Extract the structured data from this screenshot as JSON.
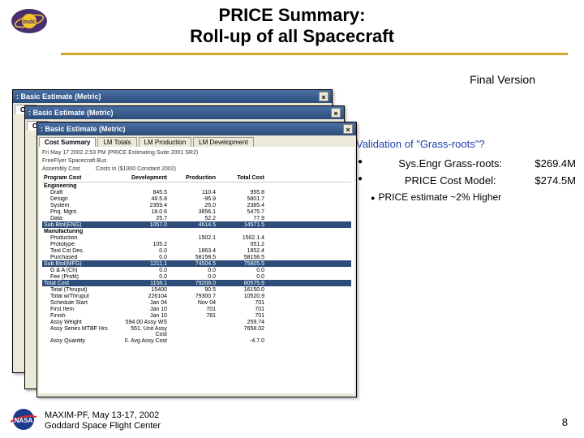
{
  "title_l1": "PRICE Summary:",
  "title_l2": "Roll-up of all Spacecraft",
  "final_version": "Final Version",
  "bullets": {
    "main": "Validation of \"Grass-roots\"?",
    "sub1_label": "Sys.Engr Grass-roots:",
    "sub1_val": "$269.4M",
    "sub2_label": "PRICE Cost Model:",
    "sub2_val": "$274.5M",
    "sub3": "PRICE estimate ~2% Higher"
  },
  "window": {
    "title": ": Basic Estimate (Metric)",
    "tabs": [
      "Cost Summary",
      "LM Totals",
      "LM Production",
      "LM Development"
    ],
    "meta1": "Fri May 17 2002 2:53 PM (PRICE Estimating Suite 2001 SR2)",
    "meta2": "FreeFlyer Spacecraft Bus",
    "meta3": "Assembly Cost",
    "meta4": "Costs in ($1000 Constant 2002)",
    "cols": [
      "Program Cost",
      "Development",
      "Production",
      "Total Cost"
    ],
    "sections": [
      {
        "label": "Engineering",
        "rows": [
          [
            "Draft",
            "845.5",
            "110.4",
            "955.8"
          ],
          [
            "Design",
            "48.5.8",
            "-95.9",
            "5801.7"
          ],
          [
            "System",
            "2359.4",
            "25.0",
            "2385.4"
          ],
          [
            "Proj. Mgnt.",
            "18.0.6",
            "3656.1",
            "5475.7"
          ],
          [
            "Data",
            "25.7",
            "52.2",
            "77.9"
          ]
        ],
        "subtotal": [
          "Sub.Btol(ENG)",
          "1057.0",
          "4614.5",
          "14571.5"
        ],
        "hl": true
      },
      {
        "label": "Manufacturing",
        "rows": [
          [
            "Production",
            "",
            "1502.1",
            "1502.1.4"
          ],
          [
            "Prototype",
            "105.2",
            "",
            "051.2"
          ],
          [
            "Tool Cst Des.",
            "0.0",
            "1863.4",
            "1852.4"
          ],
          [
            "Purchased",
            "0.0",
            "58158.5",
            "58158.5"
          ]
        ],
        "subtotal": [
          "Sub.Btol(MFG)",
          "1211.1",
          "74504.5",
          "75805.5"
        ],
        "hl": true
      },
      {
        "rows": [
          [
            "G & A (Ch)",
            "0.0",
            "0.0",
            "0.0"
          ],
          [
            "Fee (Profit)",
            "0.0",
            "0.0",
            "0.0"
          ]
        ]
      },
      {
        "subtotal": [
          "Total Cost",
          "1158.1",
          "79208.0",
          "80575.9"
        ],
        "hl": true
      },
      {
        "rows": [
          [
            "Total (Thruput)",
            "15400",
            "90.5",
            "16150.0"
          ],
          [
            "Total w/Thruput",
            "226104",
            "79300 7",
            "10520.9"
          ]
        ]
      },
      {
        "rows": [
          [
            "Schedule Start",
            "Jan 04",
            "Nov 04",
            "701"
          ],
          [
            "First Item ",
            "Jan 10",
            "701",
            "701"
          ],
          [
            "Finish",
            "Jan 10",
            "781",
            "701"
          ]
        ]
      },
      {
        "rows": [
          [
            "Assy Weight",
            "594.00 Assy WS",
            "",
            "259.74"
          ],
          [
            "Assy Series MTBF Hrs",
            "551. Unit Assy Cost",
            "",
            "7658.02"
          ],
          [
            "Assy Quantity",
            "0. Avg Assy Cost",
            "",
            "-4.7.0"
          ]
        ]
      }
    ]
  },
  "footer1": "MAXIM-PF, May 13-17, 2002",
  "footer2": "Goddard Space Flight Center",
  "page": "8",
  "colors": {
    "gold": "#d4a72c",
    "navy": "#2c4d7a",
    "blue": "#1e40af"
  }
}
